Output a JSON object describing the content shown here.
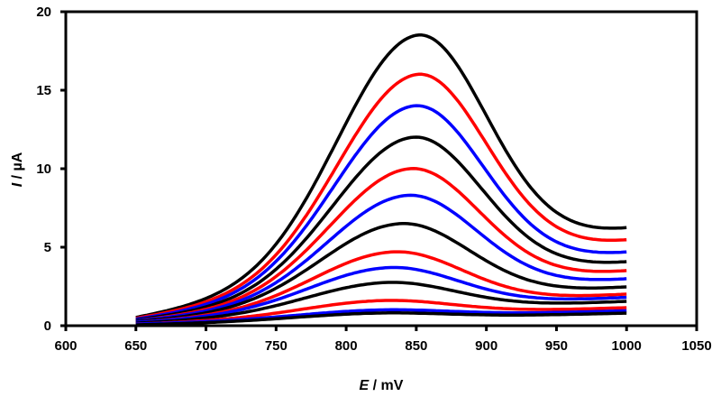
{
  "chart_data": {
    "type": "line",
    "title": "",
    "xlabel": {
      "symbol": "E",
      "unit": " / mV"
    },
    "ylabel": {
      "symbol": "I",
      "unit": " / µA"
    },
    "xlim": [
      600,
      1050
    ],
    "ylim": [
      0,
      20
    ],
    "xticks": [
      "600",
      "650",
      "700",
      "750",
      "800",
      "850",
      "900",
      "950",
      "1000",
      "1050"
    ],
    "yticks": [
      "0",
      "5",
      "10",
      "15",
      "20"
    ],
    "grid": false,
    "legend": "none",
    "x_range_of_series": [
      650,
      1000
    ],
    "series_description_fields": [
      "peak_E_mV",
      "peak_I_uA",
      "I_at_650_uA",
      "I_at_1000_uA"
    ],
    "series": [
      {
        "name": "curve-1",
        "color": "#000000",
        "peak_E": 850,
        "peak_I": 18.5,
        "I_start": 0.5,
        "I_end": 6.1
      },
      {
        "name": "curve-2",
        "color": "#ff0000",
        "peak_E": 850,
        "peak_I": 16.0,
        "I_start": 0.45,
        "I_end": 5.35
      },
      {
        "name": "curve-3",
        "color": "#0000ff",
        "peak_E": 848,
        "peak_I": 14.0,
        "I_start": 0.4,
        "I_end": 4.6
      },
      {
        "name": "curve-4",
        "color": "#000000",
        "peak_E": 847,
        "peak_I": 12.0,
        "I_start": 0.35,
        "I_end": 4.0
      },
      {
        "name": "curve-5",
        "color": "#ff0000",
        "peak_E": 845,
        "peak_I": 10.0,
        "I_start": 0.3,
        "I_end": 3.45
      },
      {
        "name": "curve-6",
        "color": "#0000ff",
        "peak_E": 843,
        "peak_I": 8.3,
        "I_start": 0.3,
        "I_end": 2.95
      },
      {
        "name": "curve-7",
        "color": "#000000",
        "peak_E": 838,
        "peak_I": 6.5,
        "I_start": 0.25,
        "I_end": 2.45
      },
      {
        "name": "curve-8",
        "color": "#ff0000",
        "peak_E": 833,
        "peak_I": 4.7,
        "I_start": 0.2,
        "I_end": 2.0
      },
      {
        "name": "curve-9",
        "color": "#0000ff",
        "peak_E": 830,
        "peak_I": 3.7,
        "I_start": 0.2,
        "I_end": 1.8
      },
      {
        "name": "curve-10",
        "color": "#000000",
        "peak_E": 828,
        "peak_I": 2.75,
        "I_start": 0.15,
        "I_end": 1.55
      },
      {
        "name": "curve-11",
        "color": "#ff0000",
        "peak_E": 825,
        "peak_I": 1.6,
        "I_start": 0.1,
        "I_end": 1.15
      },
      {
        "name": "curve-12",
        "color": "#0000ff",
        "peak_E": 822,
        "peak_I": 1.0,
        "I_start": 0.1,
        "I_end": 0.95
      },
      {
        "name": "curve-13",
        "color": "#000000",
        "peak_E": 820,
        "peak_I": 0.8,
        "I_start": 0.05,
        "I_end": 0.8
      }
    ]
  }
}
